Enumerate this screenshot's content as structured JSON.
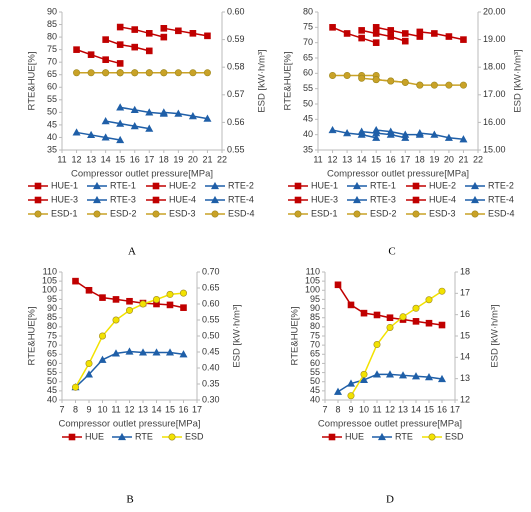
{
  "chart_data": [
    {
      "type": "line",
      "panel_label": "A",
      "xlabel": "Compressor outlet pressure[MPa]",
      "ylabel": "RTE&HUE[%]",
      "y2label": "ESD [kW·h/m³]",
      "xlim": [
        11,
        22
      ],
      "xticks": [
        11,
        12,
        13,
        14,
        15,
        16,
        17,
        18,
        19,
        20,
        21,
        22
      ],
      "ylim": [
        35,
        90
      ],
      "yticks": [
        35,
        40,
        45,
        50,
        55,
        60,
        65,
        70,
        75,
        80,
        85,
        90
      ],
      "y2lim": [
        0.55,
        0.6
      ],
      "y2ticks": [
        {
          "value": 0.55,
          "label": "0.55"
        },
        0.56,
        0.57,
        0.58,
        0.59,
        {
          "value": 0.6,
          "label": "0.60"
        }
      ],
      "series": [
        {
          "name": "HUE-1",
          "color": "#c00000",
          "marker": "square",
          "x": [
            12,
            13,
            14,
            15
          ],
          "values": [
            75,
            73,
            71,
            69.5
          ]
        },
        {
          "name": "RTE-1",
          "color": "#1f5fa8",
          "marker": "triangle",
          "x": [
            12,
            13,
            14,
            15
          ],
          "values": [
            42,
            41,
            40,
            39
          ]
        },
        {
          "name": "HUE-2",
          "color": "#c00000",
          "marker": "square",
          "x": [
            14,
            15,
            16,
            17
          ],
          "values": [
            79,
            77,
            76,
            74.5
          ]
        },
        {
          "name": "RTE-2",
          "color": "#1f5fa8",
          "marker": "triangle",
          "x": [
            14,
            15,
            16,
            17
          ],
          "values": [
            46.5,
            45.5,
            44.5,
            43.5
          ]
        },
        {
          "name": "HUE-3",
          "color": "#c00000",
          "marker": "square",
          "x": [
            15,
            16,
            17,
            18
          ],
          "values": [
            84,
            83,
            81.5,
            80
          ]
        },
        {
          "name": "RTE-3",
          "color": "#1f5fa8",
          "marker": "triangle",
          "x": [
            15,
            16,
            17,
            18
          ],
          "values": [
            52,
            51,
            50,
            49.5
          ]
        },
        {
          "name": "HUE-4",
          "color": "#c00000",
          "marker": "square",
          "x": [
            18,
            19,
            20,
            21
          ],
          "values": [
            83.5,
            82.5,
            81.5,
            80.5
          ]
        },
        {
          "name": "RTE-4",
          "color": "#1f5fa8",
          "marker": "triangle",
          "x": [
            18,
            19,
            20,
            21
          ],
          "values": [
            50,
            49.5,
            48.5,
            47.5
          ]
        },
        {
          "name": "ESD-1",
          "color": "#c9a227",
          "marker": "circle",
          "axis": "y2",
          "x": [
            12,
            13,
            14,
            15
          ],
          "values": [
            0.578,
            0.578,
            0.578,
            0.578
          ]
        },
        {
          "name": "ESD-2",
          "color": "#c9a227",
          "marker": "circle",
          "axis": "y2",
          "x": [
            14,
            15,
            16,
            17
          ],
          "values": [
            0.578,
            0.578,
            0.578,
            0.578
          ]
        },
        {
          "name": "ESD-3",
          "color": "#c9a227",
          "marker": "circle",
          "axis": "y2",
          "x": [
            15,
            16,
            17,
            18
          ],
          "values": [
            0.578,
            0.578,
            0.578,
            0.578
          ]
        },
        {
          "name": "ESD-4",
          "color": "#c9a227",
          "marker": "circle",
          "axis": "y2",
          "x": [
            18,
            19,
            20,
            21
          ],
          "values": [
            0.578,
            0.578,
            0.578,
            0.578
          ]
        }
      ]
    },
    {
      "type": "line",
      "panel_label": "C",
      "xlabel": "Compressor outlet pressure[MPa]",
      "ylabel": "RTE&HUE[%]",
      "y2label": "ESD [kW·h/m³]",
      "xlim": [
        11,
        22
      ],
      "xticks": [
        11,
        12,
        13,
        14,
        15,
        16,
        17,
        18,
        19,
        20,
        21,
        22
      ],
      "ylim": [
        35,
        80
      ],
      "yticks": [
        35,
        40,
        45,
        50,
        55,
        60,
        65,
        70,
        75,
        80
      ],
      "y2lim": [
        15,
        20
      ],
      "y2ticks": [
        {
          "value": 15,
          "label": "15.00"
        },
        {
          "value": 16,
          "label": "16.00"
        },
        {
          "value": 17,
          "label": "17.00"
        },
        {
          "value": 18,
          "label": "18.00"
        },
        {
          "value": 19,
          "label": "19.00"
        },
        {
          "value": 20,
          "label": "20.00"
        }
      ],
      "series": [
        {
          "name": "HUE-1",
          "color": "#c00000",
          "marker": "square",
          "x": [
            12,
            13,
            14,
            15
          ],
          "values": [
            75,
            73,
            71.5,
            70
          ]
        },
        {
          "name": "RTE-1",
          "color": "#1f5fa8",
          "marker": "triangle",
          "x": [
            12,
            13,
            14,
            15
          ],
          "values": [
            41.5,
            40.5,
            40,
            39
          ]
        },
        {
          "name": "HUE-2",
          "color": "#c00000",
          "marker": "square",
          "x": [
            14,
            15,
            16,
            17
          ],
          "values": [
            74,
            73,
            72,
            70.5
          ]
        },
        {
          "name": "RTE-2",
          "color": "#1f5fa8",
          "marker": "triangle",
          "x": [
            14,
            15,
            16,
            17
          ],
          "values": [
            41,
            40.5,
            40,
            39
          ]
        },
        {
          "name": "HUE-3",
          "color": "#c00000",
          "marker": "square",
          "x": [
            15,
            16,
            17,
            18
          ],
          "values": [
            75,
            74,
            73,
            72
          ]
        },
        {
          "name": "RTE-3",
          "color": "#1f5fa8",
          "marker": "triangle",
          "x": [
            15,
            16,
            17,
            18
          ],
          "values": [
            41.5,
            41,
            40,
            40
          ]
        },
        {
          "name": "HUE-4",
          "color": "#c00000",
          "marker": "square",
          "x": [
            18,
            19,
            20,
            21
          ],
          "values": [
            73.5,
            73,
            72,
            71
          ]
        },
        {
          "name": "RTE-4",
          "color": "#1f5fa8",
          "marker": "triangle",
          "x": [
            18,
            19,
            20,
            21
          ],
          "values": [
            40.5,
            40,
            39,
            38.5
          ]
        },
        {
          "name": "ESD-1",
          "color": "#c9a227",
          "marker": "circle",
          "axis": "y2",
          "x": [
            12,
            13,
            14,
            15
          ],
          "values": [
            17.7,
            17.7,
            17.7,
            17.7
          ]
        },
        {
          "name": "ESD-2",
          "color": "#c9a227",
          "marker": "circle",
          "axis": "y2",
          "x": [
            14,
            15,
            16,
            17
          ],
          "values": [
            17.6,
            17.55,
            17.5,
            17.45
          ]
        },
        {
          "name": "ESD-3",
          "color": "#c9a227",
          "marker": "circle",
          "axis": "y2",
          "x": [
            15,
            16,
            17,
            18
          ],
          "values": [
            17.55,
            17.5,
            17.45,
            17.35
          ]
        },
        {
          "name": "ESD-4",
          "color": "#c9a227",
          "marker": "circle",
          "axis": "y2",
          "x": [
            18,
            19,
            20,
            21
          ],
          "values": [
            17.35,
            17.35,
            17.35,
            17.35
          ]
        }
      ]
    },
    {
      "type": "line",
      "panel_label": "B",
      "xlabel": "Compressor outlet pressure[MPa]",
      "ylabel": "RTE&HUE[%]",
      "y2label": "ESD [kW·h/m³]",
      "xlim": [
        7,
        17
      ],
      "xticks": [
        7,
        8,
        9,
        10,
        11,
        12,
        13,
        14,
        15,
        16,
        17
      ],
      "ylim": [
        40,
        110
      ],
      "yticks": [
        40,
        45,
        50,
        55,
        60,
        65,
        70,
        75,
        80,
        85,
        90,
        95,
        100,
        105,
        110
      ],
      "y2lim": [
        0.3,
        0.7
      ],
      "y2ticks": [
        {
          "value": 0.3,
          "label": "0.30"
        },
        0.35,
        {
          "value": 0.4,
          "label": "0.40"
        },
        0.45,
        {
          "value": 0.5,
          "label": "0.50"
        },
        0.55,
        {
          "value": 0.6,
          "label": "0.60"
        },
        0.65,
        {
          "value": 0.7,
          "label": "0.70"
        }
      ],
      "series": [
        {
          "name": "HUE",
          "color": "#c00000",
          "marker": "square",
          "x": [
            8,
            9,
            10,
            11,
            12,
            13,
            14,
            15,
            16
          ],
          "values": [
            105,
            100,
            96,
            95,
            94,
            93,
            92.5,
            92,
            90.5
          ]
        },
        {
          "name": "RTE",
          "color": "#1f5fa8",
          "marker": "triangle",
          "x": [
            8,
            9,
            10,
            11,
            12,
            13,
            14,
            15,
            16
          ],
          "values": [
            47,
            54,
            62,
            65.5,
            66.5,
            66,
            66,
            66,
            65
          ]
        },
        {
          "name": "ESD",
          "color": "#f2e200",
          "marker": "circle",
          "axis": "y2",
          "x": [
            8,
            9,
            10,
            11,
            12,
            13,
            14,
            15,
            16
          ],
          "values": [
            0.34,
            0.414,
            0.5,
            0.55,
            0.58,
            0.6,
            0.614,
            0.63,
            0.634
          ]
        }
      ]
    },
    {
      "type": "line",
      "panel_label": "D",
      "xlabel": "Compressoe outlet pressure[MPa]",
      "ylabel": "RTE&HUE[%]",
      "y2label": "ESD [kW·h/m³]",
      "xlim": [
        7,
        17
      ],
      "xticks": [
        7,
        8,
        9,
        10,
        11,
        12,
        13,
        14,
        15,
        16,
        17
      ],
      "ylim": [
        40,
        110
      ],
      "yticks": [
        40,
        45,
        50,
        55,
        60,
        65,
        70,
        75,
        80,
        85,
        90,
        95,
        100,
        105,
        110
      ],
      "y2lim": [
        12,
        18
      ],
      "y2ticks": [
        12,
        13,
        14,
        15,
        16,
        17,
        18
      ],
      "series": [
        {
          "name": "HUE",
          "color": "#c00000",
          "marker": "square",
          "x": [
            8,
            9,
            10,
            11,
            12,
            13,
            14,
            15,
            16
          ],
          "values": [
            103,
            92,
            87.5,
            86.5,
            85,
            84,
            83,
            82,
            81
          ]
        },
        {
          "name": "RTE",
          "color": "#1f5fa8",
          "marker": "triangle",
          "x": [
            8,
            9,
            10,
            11,
            12,
            13,
            14,
            15,
            16
          ],
          "values": [
            44.5,
            49,
            51,
            54,
            54,
            53.5,
            53,
            52.5,
            51.5
          ]
        },
        {
          "name": "ESD",
          "color": "#f2e200",
          "marker": "circle",
          "axis": "y2",
          "x": [
            9,
            10,
            11,
            12,
            13,
            14,
            15,
            16
          ],
          "values": [
            12.2,
            13.2,
            14.6,
            15.4,
            15.9,
            16.3,
            16.7,
            17.1
          ]
        }
      ]
    }
  ]
}
